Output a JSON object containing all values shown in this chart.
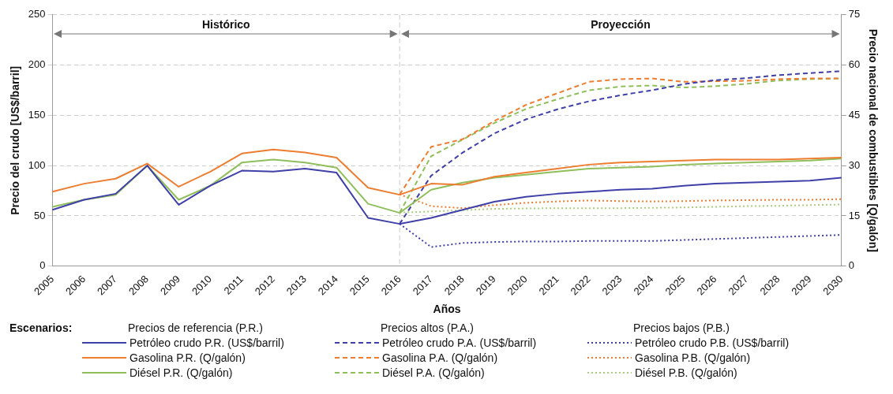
{
  "chart_data": {
    "type": "line",
    "xlabel": "Años",
    "ylabel": "Precio del crudo [US$/barril]",
    "y2label": "Precio nacional de combustibles [Q/galón]",
    "legend_title": "Escenarios:",
    "categories": [
      "2005",
      "2006",
      "2007",
      "2008",
      "2009",
      "2010",
      "2011",
      "2012",
      "2013",
      "2014",
      "2015",
      "2016",
      "2017",
      "2018",
      "2019",
      "2020",
      "2021",
      "2022",
      "2023",
      "2024",
      "2025",
      "2026",
      "2027",
      "2028",
      "2029",
      "2030"
    ],
    "ylim": [
      0,
      250
    ],
    "yticks": [
      0,
      50,
      100,
      150,
      200,
      250
    ],
    "y2lim": [
      0,
      75
    ],
    "y2ticks": [
      0,
      15,
      30,
      45,
      60,
      75
    ],
    "grid": "y",
    "legend": "bottom",
    "marker": "none",
    "ref_lines": [
      {
        "axis": "x",
        "value": "2016",
        "line_style": "dashed",
        "color": "#c8c8c8"
      }
    ],
    "annotations": [
      "Histórico",
      "Proyección",
      "Precios de referencia (P.R.)",
      "Precios altos (P.A.)",
      "Precios bajos (P.B.)"
    ],
    "series": [
      {
        "name": "Petróleo crudo P.R. (US$/barril)",
        "color": "#3f3fa8",
        "line_style": "solid",
        "values": [
          56,
          66,
          72,
          100,
          61,
          80,
          95,
          94,
          97,
          93,
          48,
          42,
          48,
          56,
          64,
          69,
          72,
          74,
          76,
          77,
          80,
          82,
          83,
          84,
          85,
          88
        ]
      },
      {
        "name": "Gasolina P.R. (Q/galón)",
        "color": "#ed7d31",
        "line_style": "solid",
        "axis": "y2",
        "values": [
          22.2,
          24.6,
          26.1,
          30.6,
          23.7,
          28.2,
          33.6,
          34.8,
          33.9,
          32.4,
          23.4,
          21.3,
          24.6,
          24.3,
          26.7,
          27.9,
          29.1,
          30.3,
          30.9,
          31.2,
          31.5,
          31.8,
          31.8,
          31.8,
          32.1,
          32.4
        ]
      },
      {
        "name": "Diésel P.R. (Q/galón)",
        "color": "#8fbf5a",
        "line_style": "solid",
        "axis": "y2",
        "values": [
          17.7,
          19.8,
          21.3,
          30,
          19.8,
          24,
          30.9,
          31.8,
          30.9,
          29.4,
          18.6,
          15.9,
          22.8,
          24.9,
          26.4,
          27.3,
          28.2,
          29.1,
          29.4,
          29.7,
          30.3,
          30.6,
          30.9,
          31.2,
          31.5,
          32.1
        ]
      },
      {
        "name": "Petróleo crudo P.A. (US$/barril)",
        "color": "#3f3fa8",
        "line_style": "dashed",
        "values": [
          null,
          null,
          null,
          null,
          null,
          null,
          null,
          null,
          null,
          null,
          null,
          42,
          90,
          113,
          132,
          146,
          156,
          164,
          170,
          175,
          181,
          185,
          187,
          190,
          192,
          194
        ]
      },
      {
        "name": "Gasolina P.A. (Q/galón)",
        "color": "#ed7d31",
        "line_style": "dashed",
        "axis": "y2",
        "values": [
          null,
          null,
          null,
          null,
          null,
          null,
          null,
          null,
          null,
          null,
          null,
          21.4,
          35.6,
          37.9,
          43.3,
          48.1,
          51.6,
          55,
          55.8,
          56,
          55,
          55.2,
          55.3,
          55.8,
          56,
          56
        ]
      },
      {
        "name": "Diésel P.A. (Q/galón)",
        "color": "#8fbf5a",
        "line_style": "dashed",
        "axis": "y2",
        "values": [
          null,
          null,
          null,
          null,
          null,
          null,
          null,
          null,
          null,
          null,
          null,
          16,
          32.8,
          37.8,
          42.7,
          46.9,
          49.8,
          52.5,
          53.6,
          53.9,
          53.3,
          53.7,
          54.4,
          55.4,
          55.8,
          56
        ]
      },
      {
        "name": "Petróleo crudo P.B. (US$/barril)",
        "color": "#3f3fa8",
        "line_style": "dotted",
        "values": [
          null,
          null,
          null,
          null,
          null,
          null,
          null,
          null,
          null,
          null,
          null,
          42,
          19,
          23,
          24,
          24.5,
          24.5,
          25,
          25,
          25,
          26,
          27,
          28,
          29,
          30,
          31
        ]
      },
      {
        "name": "Gasolina P.B. (Q/galón)",
        "color": "#ed7d31",
        "line_style": "dotted",
        "axis": "y2",
        "values": [
          null,
          null,
          null,
          null,
          null,
          null,
          null,
          null,
          null,
          null,
          null,
          21.4,
          17.9,
          17.3,
          18.2,
          18.9,
          19.3,
          19.6,
          19.4,
          19.3,
          19.4,
          19.6,
          19.7,
          19.8,
          19.8,
          20
        ]
      },
      {
        "name": "Diésel P.B. (Q/galón)",
        "color": "#a9cf7e",
        "line_style": "dotted",
        "axis": "y2",
        "values": [
          null,
          null,
          null,
          null,
          null,
          null,
          null,
          null,
          null,
          null,
          null,
          16,
          16.3,
          16.7,
          17.1,
          17.2,
          17.3,
          17.3,
          17.3,
          17.4,
          17.5,
          17.7,
          17.9,
          18,
          18.2,
          18.4
        ]
      }
    ]
  }
}
